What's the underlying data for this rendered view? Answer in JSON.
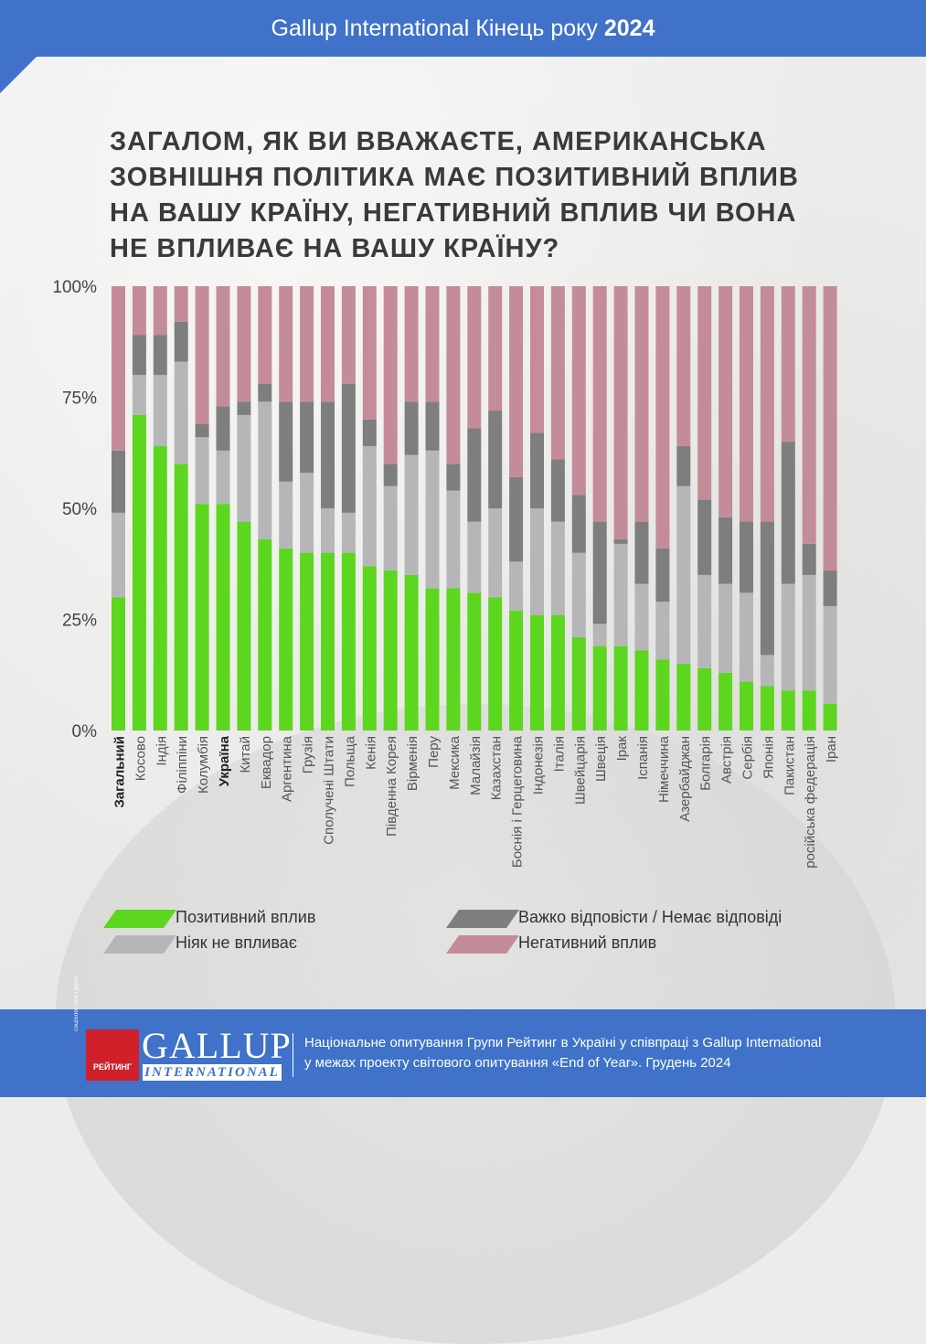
{
  "header": {
    "title": "Gallup International Кінець року",
    "year": "2024"
  },
  "question": {
    "lines": [
      "ЗАГАЛОМ, ЯК ВИ ВВАЖАЄТЕ, АМЕРИКАНСЬКА",
      "ЗОВНІШНЯ ПОЛІТИКА МАЄ ПОЗИТИВНИЙ ВПЛИВ",
      "НА ВАШУ КРАЇНУ, НЕГАТИВНИЙ ВПЛИВ ЧИ ВОНА",
      "НЕ ВПЛИВАЄ НА ВАШУ КРАЇНУ?"
    ]
  },
  "colors": {
    "positive": "#5cd61e",
    "no_effect": "#b6b6b9",
    "hard_to_say": "#7e7e7e",
    "negative": "#c48c98",
    "header": "#3f72c8"
  },
  "chart_data": {
    "type": "bar",
    "stacked": true,
    "ylim": [
      0,
      100
    ],
    "yticks": [
      "0%",
      "25%",
      "50%",
      "75%",
      "100%"
    ],
    "grid": false,
    "legend_position": "bottom",
    "categories": [
      "Загальний",
      "Косово",
      "Індія",
      "Філіппіни",
      "Колумбія",
      "Україна",
      "Китай",
      "Еквадор",
      "Аргентина",
      "Грузія",
      "Сполучені Штати",
      "Польща",
      "Кенія",
      "Південна Корея",
      "Вірменія",
      "Перу",
      "Мексика",
      "Малайзія",
      "Казахстан",
      "Боснія і Герцеговина",
      "Індонезія",
      "Італія",
      "Швейцарія",
      "Швеція",
      "Ірак",
      "Іспанія",
      "Німеччина",
      "Азербайджан",
      "Болгарія",
      "Австрія",
      "Сербія",
      "Японія",
      "Пакистан",
      "російська федерація",
      "Іран"
    ],
    "bold_categories": [
      "Загальний",
      "Україна"
    ],
    "series": [
      {
        "name": "Позитивний вплив",
        "color_key": "positive",
        "values": [
          30,
          71,
          64,
          60,
          51,
          51,
          47,
          43,
          41,
          40,
          40,
          40,
          37,
          36,
          35,
          32,
          32,
          31,
          30,
          27,
          26,
          26,
          21,
          19,
          19,
          18,
          16,
          15,
          14,
          13,
          11,
          10,
          9,
          9,
          6
        ]
      },
      {
        "name": "Ніяк не впливає",
        "color_key": "no_effect",
        "values": [
          19,
          9,
          16,
          23,
          15,
          12,
          24,
          31,
          15,
          18,
          10,
          9,
          27,
          19,
          27,
          31,
          22,
          16,
          20,
          11,
          24,
          21,
          19,
          5,
          23,
          15,
          13,
          40,
          21,
          20,
          20,
          7,
          24,
          26,
          22
        ]
      },
      {
        "name": "Важко відповісти / Немає відповіді",
        "color_key": "hard_to_say",
        "values": [
          14,
          9,
          9,
          9,
          3,
          10,
          3,
          4,
          18,
          16,
          24,
          29,
          6,
          5,
          12,
          11,
          6,
          21,
          22,
          19,
          17,
          14,
          13,
          23,
          1,
          14,
          12,
          9,
          17,
          15,
          16,
          30,
          32,
          7,
          8
        ]
      },
      {
        "name": "Негативний вплив",
        "color_key": "negative",
        "values": [
          37,
          11,
          11,
          8,
          31,
          27,
          26,
          22,
          26,
          26,
          26,
          22,
          30,
          40,
          26,
          26,
          40,
          32,
          28,
          43,
          33,
          39,
          47,
          53,
          57,
          53,
          59,
          36,
          48,
          52,
          53,
          53,
          35,
          58,
          64
        ]
      }
    ]
  },
  "legend": {
    "items": [
      {
        "label": "Позитивний вплив",
        "color_key": "positive"
      },
      {
        "label": "Важко відповісти / Немає відповіді",
        "color_key": "hard_to_say"
      },
      {
        "label": "Ніяк не впливає",
        "color_key": "no_effect"
      },
      {
        "label": "Негативний вплив",
        "color_key": "negative"
      }
    ]
  },
  "footer": {
    "logo_small": "соціологічна група",
    "logo_red_label": "РЕЙТИНГ",
    "logo_gallup": "GALLUP",
    "logo_international": "INTERNATIONAL",
    "line1": "Національне опитування Групи Рейтинг в Україні у співпраці з Gallup International",
    "line2": "у межах проекту світового опитування «End of Year». Грудень 2024"
  }
}
